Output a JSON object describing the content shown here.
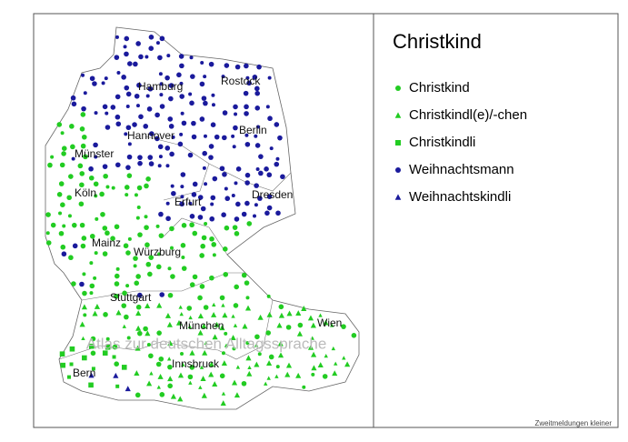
{
  "title": "Christkind",
  "legend": [
    {
      "label": "Christkind",
      "shape": "circle",
      "color": "#22cc22"
    },
    {
      "label": "Christkindl(e)/-chen",
      "shape": "triangle",
      "color": "#22cc22"
    },
    {
      "label": "Christkindli",
      "shape": "square",
      "color": "#22cc22"
    },
    {
      "label": "Weihnachtsmann",
      "shape": "circle",
      "color": "#1a1a9c"
    },
    {
      "label": "Weihnachtskindli",
      "shape": "triangle",
      "color": "#1a1a9c"
    }
  ],
  "cities": [
    "Hamburg",
    "Rostock",
    "Hannover",
    "Berlin",
    "Münster",
    "Köln",
    "Erfurt",
    "Dresden",
    "Mainz",
    "Würzburg",
    "Stuttgart",
    "München",
    "Wien",
    "Innsbruck",
    "Bern"
  ],
  "watermark": "Atlas zur deutschen Alltagssprache",
  "note": "Zweitmeldungen kleiner"
}
